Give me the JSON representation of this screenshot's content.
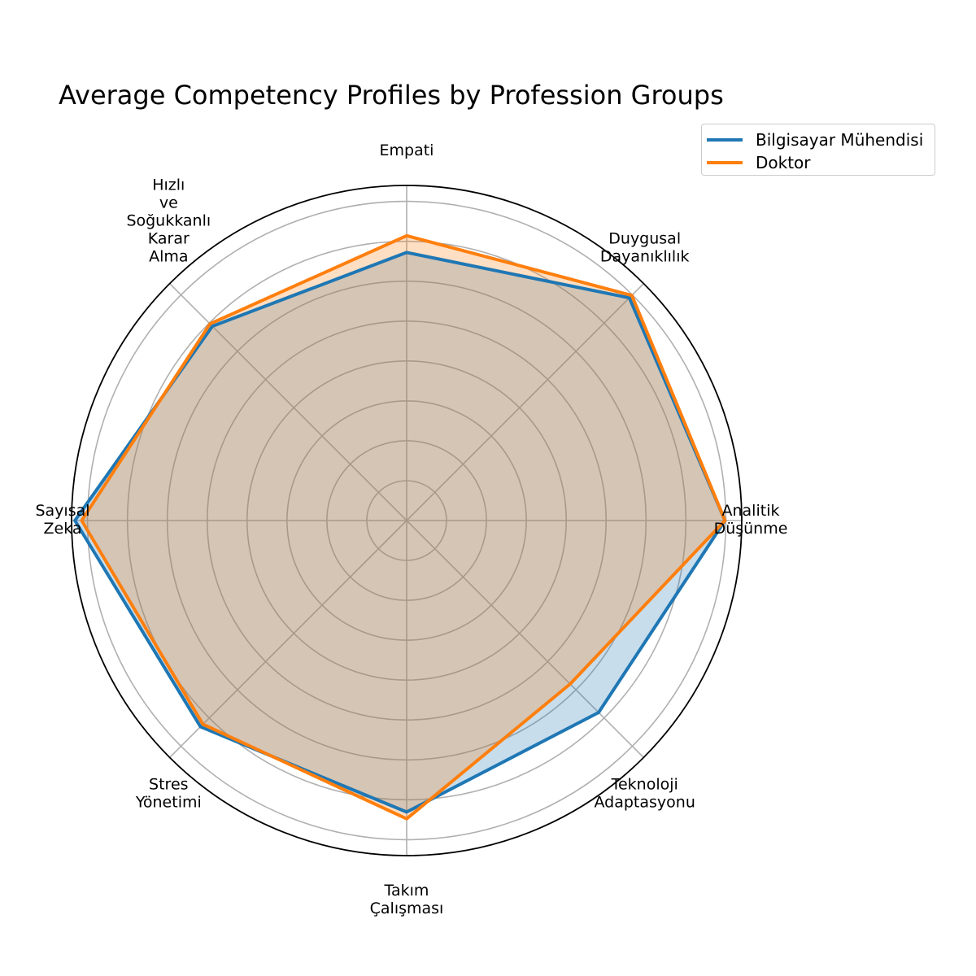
{
  "chart_data": {
    "type": "radar",
    "title": "Average Competency Profiles by Profession Groups",
    "axes": [
      [
        "Analitik",
        "Düşünme"
      ],
      [
        "Duygusal",
        "Dayanıklılık"
      ],
      [
        "Empati"
      ],
      [
        "Hızlı",
        "ve",
        "Soğukkanlı",
        "Karar",
        "Alma"
      ],
      [
        "Sayısal",
        "Zeka"
      ],
      [
        "Stres",
        "Yönetimi"
      ],
      [
        "Takım",
        "Çalışması"
      ],
      [
        "Teknoloji",
        "Adaptasyonu"
      ]
    ],
    "rlim": [
      0,
      10
    ],
    "grid": true,
    "legend_position": "top-right",
    "series": [
      {
        "name": "Bilgisayar Mühendisi",
        "color": "#1f77b4",
        "values": [
          9.5,
          9.4,
          8.0,
          8.2,
          9.9,
          8.7,
          8.7,
          8.1
        ]
      },
      {
        "name": "Doktor",
        "color": "#ff7f0e",
        "values": [
          9.5,
          9.5,
          8.5,
          8.3,
          9.7,
          8.6,
          8.9,
          6.9
        ]
      }
    ]
  }
}
